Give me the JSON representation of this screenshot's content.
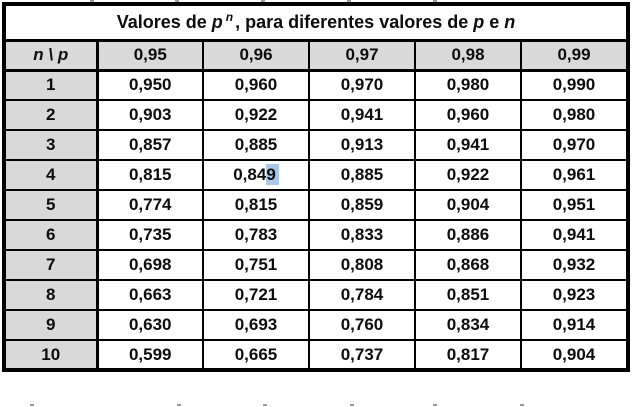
{
  "title": {
    "plain": "Valores de p^n , para diferentes valores de p e n",
    "segments": [
      {
        "text": "Valores de ",
        "style": "normal"
      },
      {
        "text": "p",
        "style": "italic"
      },
      {
        "text": "n",
        "style": "superscript"
      },
      {
        "text": ", para diferentes valores de ",
        "style": "normal"
      },
      {
        "text": "p",
        "style": "italic"
      },
      {
        "text": " e ",
        "style": "normal"
      },
      {
        "text": "n",
        "style": "italic"
      }
    ]
  },
  "chart_data": {
    "type": "table",
    "title": "Valores de p^n, para diferentes valores de p e n",
    "corner_label": "n \\ p",
    "column_headers": [
      "0,95",
      "0,96",
      "0,97",
      "0,98",
      "0,99"
    ],
    "row_headers": [
      "1",
      "2",
      "3",
      "4",
      "5",
      "6",
      "7",
      "8",
      "9",
      "10"
    ],
    "rows": [
      [
        "0,950",
        "0,960",
        "0,970",
        "0,980",
        "0,990"
      ],
      [
        "0,903",
        "0,922",
        "0,941",
        "0,960",
        "0,980"
      ],
      [
        "0,857",
        "0,885",
        "0,913",
        "0,941",
        "0,970"
      ],
      [
        "0,815",
        "0,849",
        "0,885",
        "0,922",
        "0,961"
      ],
      [
        "0,774",
        "0,815",
        "0,859",
        "0,904",
        "0,951"
      ],
      [
        "0,735",
        "0,783",
        "0,833",
        "0,886",
        "0,941"
      ],
      [
        "0,698",
        "0,751",
        "0,808",
        "0,868",
        "0,932"
      ],
      [
        "0,663",
        "0,721",
        "0,784",
        "0,851",
        "0,923"
      ],
      [
        "0,630",
        "0,693",
        "0,760",
        "0,834",
        "0,914"
      ],
      [
        "0,599",
        "0,665",
        "0,737",
        "0,817",
        "0,904"
      ]
    ]
  },
  "selection": {
    "row_index": 3,
    "col_index": 1,
    "cell_value": "0,849",
    "prefix": "0,84",
    "highlighted_text": "9",
    "highlight_color": "#a9c7e6"
  },
  "colors": {
    "header_bg": "#d9d9d9",
    "cell_bg": "#ffffff",
    "border": "#000000",
    "text": "#0d0d0d"
  }
}
